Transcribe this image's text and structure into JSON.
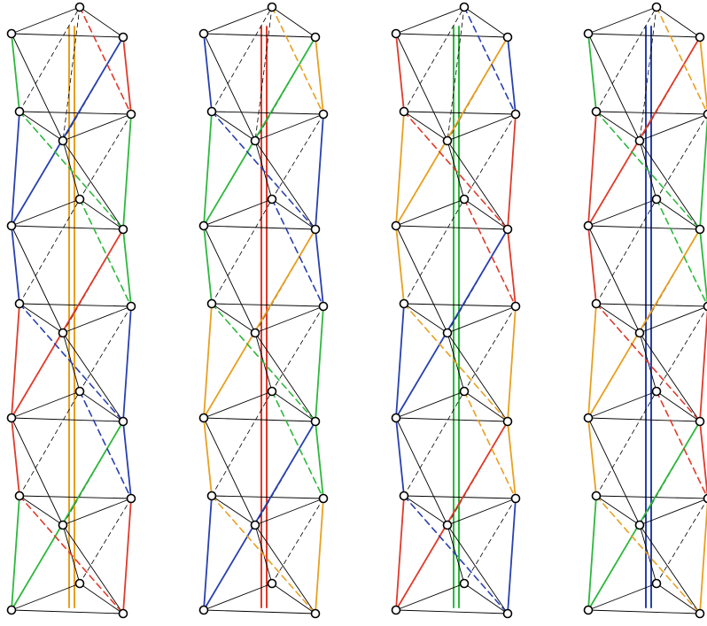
{
  "panels": [
    {
      "axis_color": "#e8a020",
      "edge_colors": [
        "#2db83d",
        "#2840b0",
        "#e03a2a"
      ]
    },
    {
      "axis_color": "#e03a2a",
      "edge_colors": [
        "#2840b0",
        "#2db83d",
        "#e8a020"
      ]
    },
    {
      "axis_color": "#2db83d",
      "edge_colors": [
        "#e03a2a",
        "#e8a020",
        "#2840b0"
      ]
    },
    {
      "axis_color": "#2840b0",
      "edge_colors": [
        "#2db83d",
        "#e03a2a",
        "#e8a020"
      ]
    }
  ]
}
